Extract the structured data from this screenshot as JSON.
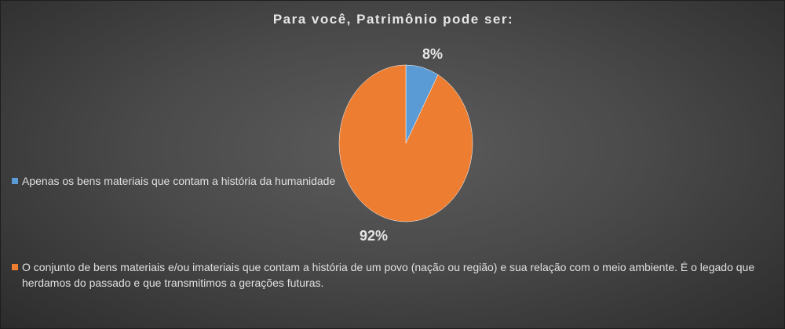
{
  "chart_data": {
    "type": "pie",
    "title": "Para você, Patrimônio pode ser:",
    "categories": [
      "Apenas os bens materiais que contam a história da humanidade",
      "O conjunto de bens materiais e/ou imateriais que contam a história de um povo (nação ou região) e sua relação com o meio ambiente. É o legado que herdamos do passado e que transmitimos a gerações futuras."
    ],
    "values": [
      8,
      92
    ],
    "data_labels": [
      "8%",
      "92%"
    ],
    "colors": [
      "#5b9bd5",
      "#ed7d31"
    ],
    "legend": "left"
  }
}
